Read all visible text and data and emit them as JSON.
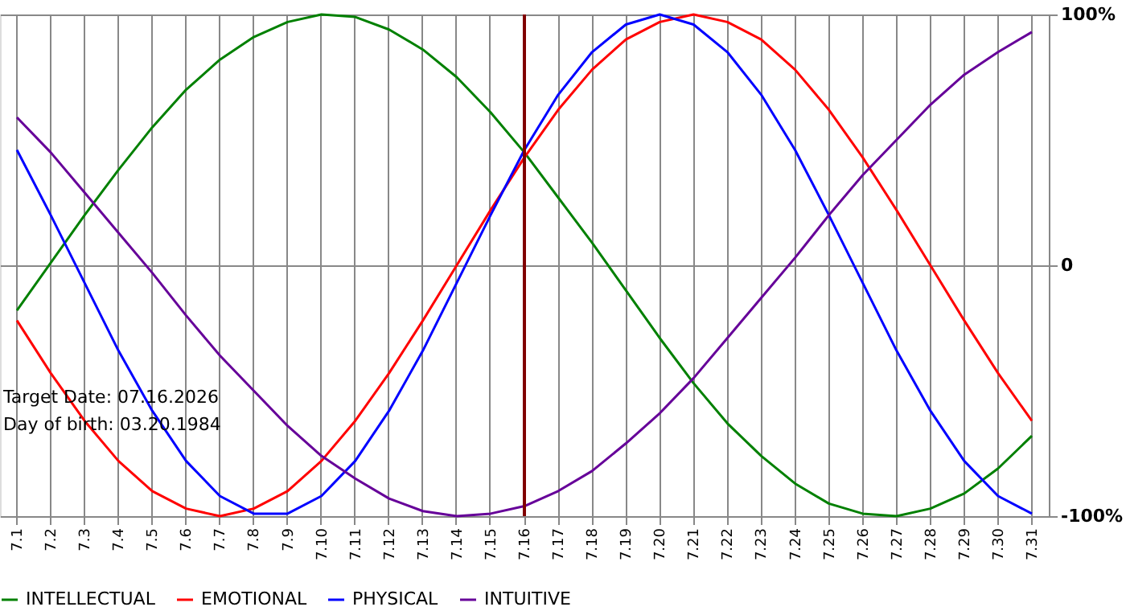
{
  "chart_data": {
    "type": "line",
    "categories": [
      "7.1",
      "7.2",
      "7.3",
      "7.4",
      "7.5",
      "7.6",
      "7.7",
      "7.8",
      "7.9",
      "7.10",
      "7.11",
      "7.12",
      "7.13",
      "7.14",
      "7.15",
      "7.16",
      "7.17",
      "7.18",
      "7.19",
      "7.20",
      "7.21",
      "7.22",
      "7.23",
      "7.24",
      "7.25",
      "7.26",
      "7.27",
      "7.28",
      "7.29",
      "7.30",
      "7.31"
    ],
    "series": [
      {
        "name": "INTELLECTUAL",
        "color": "#008000",
        "values": [
          -18,
          1,
          20,
          38,
          55,
          70,
          82,
          91,
          97,
          100,
          99,
          94,
          86,
          75,
          61,
          45,
          27,
          9,
          -10,
          -29,
          -47,
          -63,
          -76,
          -87,
          -95,
          -99,
          -100,
          -97,
          -91,
          -81,
          -68
        ]
      },
      {
        "name": "EMOTIONAL",
        "color": "#ff0000",
        "values": [
          -22,
          -43,
          -62,
          -78,
          -90,
          -97,
          -100,
          -97,
          -90,
          -78,
          -62,
          -43,
          -22,
          0,
          22,
          43,
          62,
          78,
          90,
          97,
          100,
          97,
          90,
          78,
          62,
          43,
          22,
          0,
          -22,
          -43,
          -62
        ]
      },
      {
        "name": "PHYSICAL",
        "color": "#0000ff",
        "values": [
          46,
          20,
          -7,
          -34,
          -58,
          -78,
          -92,
          -99,
          -99,
          -92,
          -78,
          -58,
          -34,
          -7,
          20,
          46,
          68,
          85,
          96,
          100,
          96,
          85,
          68,
          46,
          20,
          -7,
          -34,
          -58,
          -78,
          -92,
          -99
        ]
      },
      {
        "name": "INTUITIVE",
        "color": "#660099",
        "values": [
          59,
          45,
          29,
          13,
          -3,
          -20,
          -36,
          -50,
          -64,
          -76,
          -85,
          -93,
          -98,
          -100,
          -99,
          -96,
          -90,
          -82,
          -71,
          -59,
          -45,
          -29,
          -13,
          3,
          20,
          36,
          50,
          64,
          76,
          85,
          93
        ]
      }
    ],
    "ylim": [
      -100,
      100
    ],
    "yticks": [
      {
        "value": 100,
        "label": "100%"
      },
      0,
      {
        "value": -100,
        "label": "-100%"
      }
    ],
    "ref_lines": [
      {
        "axis": "x",
        "value": "7.16",
        "color": "#800000"
      }
    ],
    "annotations": [
      "Target Date: 07.16.2026",
      "Day of birth: 03.20.1984"
    ],
    "grid": true,
    "legend": "bottom",
    "marker": "none",
    "line_style": "solid"
  }
}
